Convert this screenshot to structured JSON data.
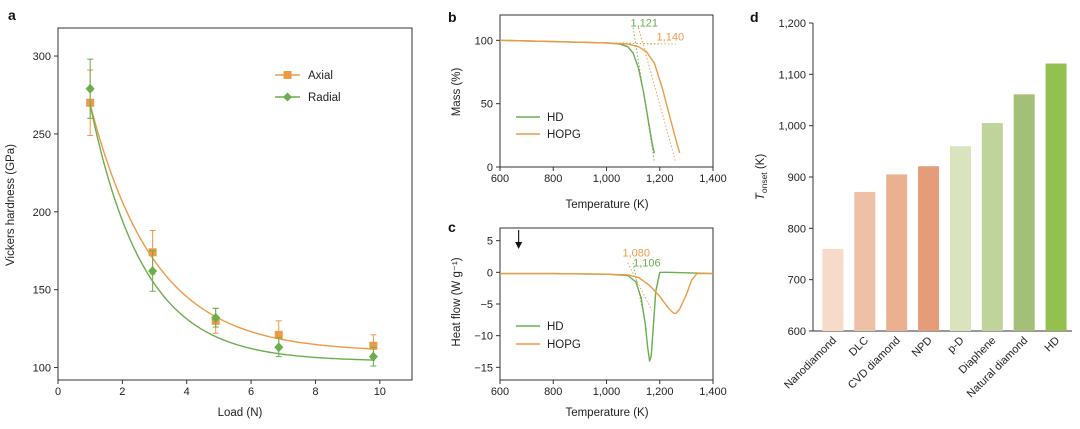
{
  "colors": {
    "axial": "#EE9A45",
    "radial": "#6AAE4E",
    "axis": "#333333"
  },
  "chart_data": [
    {
      "panel": "a",
      "type": "scatter",
      "xlabel": "Load (N)",
      "ylabel": "Vickers hardness (GPa)",
      "xlim": [
        0,
        11
      ],
      "ylim": [
        92,
        318
      ],
      "xticks": [
        0,
        2,
        4,
        6,
        8,
        10
      ],
      "yticks": [
        100,
        150,
        200,
        250,
        300
      ],
      "legend": {
        "position": "top-right"
      },
      "series": [
        {
          "name": "Axial",
          "color_key": "axial",
          "marker": "square",
          "x": [
            1,
            2.94,
            4.9,
            6.86,
            9.8
          ],
          "y": [
            270,
            174,
            130,
            121,
            114
          ],
          "err": [
            21,
            14,
            8,
            9,
            7
          ],
          "fit": {
            "a": 110,
            "b": 262,
            "k": 0.5
          }
        },
        {
          "name": "Radial",
          "color_key": "radial",
          "marker": "diamond",
          "x": [
            1,
            2.94,
            4.9,
            6.86,
            9.8
          ],
          "y": [
            279,
            162,
            132,
            113,
            107
          ],
          "err": [
            19,
            13,
            6,
            6,
            6
          ],
          "fit": {
            "a": 104,
            "b": 300,
            "k": 0.6
          }
        }
      ]
    },
    {
      "panel": "b",
      "type": "line",
      "xlabel": "Temperature (K)",
      "ylabel": "Mass (%)",
      "xlim": [
        600,
        1400
      ],
      "ylim": [
        0,
        120
      ],
      "xticks": [
        600,
        800,
        1000,
        1200,
        1400
      ],
      "xtick_labels": [
        "600",
        "800",
        "1,000",
        "1,200",
        "1,400"
      ],
      "yticks": [
        0,
        50,
        100
      ],
      "legend": {
        "position": "bottom-left"
      },
      "series": [
        {
          "name": "HD",
          "color_key": "radial",
          "x": [
            600,
            800,
            1000,
            1050,
            1080,
            1100,
            1120,
            1140,
            1160,
            1172,
            1180
          ],
          "y": [
            100,
            99,
            98,
            97,
            95,
            90,
            78,
            58,
            33,
            18,
            11
          ]
        },
        {
          "name": "HOPG",
          "color_key": "axial",
          "x": [
            600,
            800,
            1000,
            1080,
            1120,
            1150,
            1180,
            1210,
            1240,
            1265,
            1275
          ],
          "y": [
            100,
            99,
            98,
            97,
            95,
            91,
            82,
            62,
            38,
            18,
            11
          ]
        }
      ],
      "onset_lines": [
        {
          "color_key": "radial",
          "x1": 1100,
          "y1": 110,
          "x2": 1180,
          "y2": 4
        },
        {
          "color_key": "axial",
          "x1": 1120,
          "y1": 110,
          "x2": 1260,
          "y2": 4
        },
        {
          "color_key": "radial",
          "x1": 1020,
          "y1": 98,
          "x2": 1200,
          "y2": 97
        },
        {
          "color_key": "axial",
          "x1": 1020,
          "y1": 98,
          "x2": 1260,
          "y2": 97
        }
      ],
      "annotations": [
        {
          "text": "1,121",
          "color_key": "radial",
          "x": 1090,
          "y": 111
        },
        {
          "text": "1,140",
          "color_key": "axial",
          "x": 1188,
          "y": 100
        }
      ]
    },
    {
      "panel": "c",
      "type": "line",
      "xlabel": "Temperature (K)",
      "ylabel": "Heat flow (W g⁻¹)",
      "xlim": [
        600,
        1400
      ],
      "ylim": [
        -17,
        7
      ],
      "xticks": [
        600,
        800,
        1000,
        1200,
        1400
      ],
      "xtick_labels": [
        "600",
        "800",
        "1,000",
        "1,200",
        "1,400"
      ],
      "yticks": [
        5,
        0,
        -5,
        -10,
        -15
      ],
      "legend": {
        "position": "bottom-left"
      },
      "series": [
        {
          "name": "HD",
          "color_key": "radial",
          "x": [
            600,
            800,
            1000,
            1080,
            1110,
            1130,
            1145,
            1155,
            1162,
            1168,
            1175,
            1185,
            1200,
            1230,
            1400
          ],
          "y": [
            -0.2,
            -0.2,
            -0.3,
            -0.5,
            -1.5,
            -4,
            -8,
            -12,
            -14,
            -13.2,
            -9,
            -3,
            0,
            0,
            -0.2
          ]
        },
        {
          "name": "HOPG",
          "color_key": "axial",
          "x": [
            600,
            800,
            1000,
            1080,
            1120,
            1160,
            1200,
            1230,
            1250,
            1260,
            1275,
            1300,
            1320,
            1340,
            1400
          ],
          "y": [
            -0.2,
            -0.2,
            -0.3,
            -0.4,
            -0.8,
            -2,
            -3.8,
            -5.5,
            -6.4,
            -6.5,
            -5.8,
            -3.5,
            -1.2,
            -0.2,
            -0.2
          ]
        }
      ],
      "onset_lines": [
        {
          "color_key": "axial",
          "x1": 1080,
          "y1": 1.5,
          "x2": 1170,
          "y2": -6
        },
        {
          "color_key": "radial",
          "x1": 1100,
          "y1": 1.5,
          "x2": 1150,
          "y2": -9
        }
      ],
      "arrow_x": 670,
      "annotations": [
        {
          "text": "1,080",
          "color_key": "axial",
          "x": 1060,
          "y": 2.5
        },
        {
          "text": "1,106",
          "color_key": "radial",
          "x": 1100,
          "y": 0.9
        }
      ]
    },
    {
      "panel": "d",
      "type": "bar",
      "ylabel_main": "T",
      "ylabel_sub": "onset",
      "ylabel_unit": " (K)",
      "ylim": [
        600,
        1200
      ],
      "yticks": [
        600,
        700,
        800,
        900,
        1000,
        1100,
        1200
      ],
      "ytick_labels": [
        "600",
        "700",
        "800",
        "900",
        "1,000",
        "1,100",
        "1,200"
      ],
      "categories": [
        "Nanodiamond",
        "DLC",
        "CVD diamond",
        "NPD",
        "p-D",
        "Diaphene",
        "Natural diamond",
        "HD"
      ],
      "values": [
        760,
        871,
        905,
        921,
        960,
        1005,
        1061,
        1121
      ],
      "bar_colors": [
        "#F6DBCB",
        "#EEC0A5",
        "#EBB08F",
        "#E59D79",
        "#D9E3BE",
        "#BFD39B",
        "#A3BF78",
        "#93C04E"
      ]
    }
  ]
}
